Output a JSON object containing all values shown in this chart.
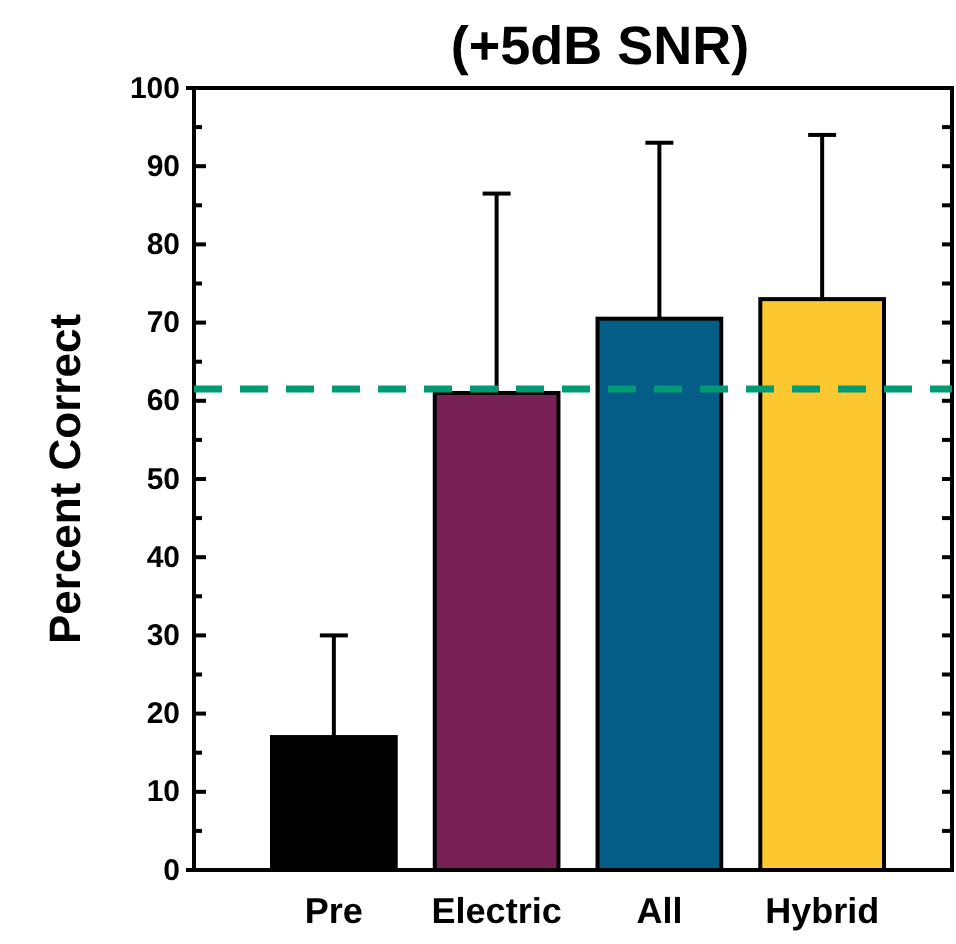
{
  "chart_data": {
    "type": "bar",
    "title": "(+5dB SNR)",
    "ylabel": "Percent Correct",
    "categories": [
      "Pre",
      "Electric",
      "All",
      "Hybrid"
    ],
    "values": [
      17,
      61,
      70.5,
      73
    ],
    "colors": [
      "#000000",
      "#782157",
      "#035d86",
      "#fdc82f"
    ],
    "errors": [
      13,
      25.5,
      22.5,
      21
    ],
    "ylim": [
      0,
      100
    ],
    "yticks": [
      0,
      {
        "value": 5,
        "label": null
      },
      10,
      {
        "value": 15,
        "label": null
      },
      20,
      {
        "value": 25,
        "label": null
      },
      30,
      {
        "value": 35,
        "label": null
      },
      40,
      {
        "value": 45,
        "label": null
      },
      50,
      {
        "value": 55,
        "label": null
      },
      60,
      {
        "value": 65,
        "label": null
      },
      70,
      {
        "value": 75,
        "label": null
      },
      80,
      {
        "value": 85,
        "label": null
      },
      90,
      {
        "value": 95,
        "label": null
      },
      100
    ],
    "ref_lines": [
      {
        "axis": "y",
        "value": 61.5,
        "color": "#009a74",
        "line_style": "dashed"
      }
    ]
  }
}
